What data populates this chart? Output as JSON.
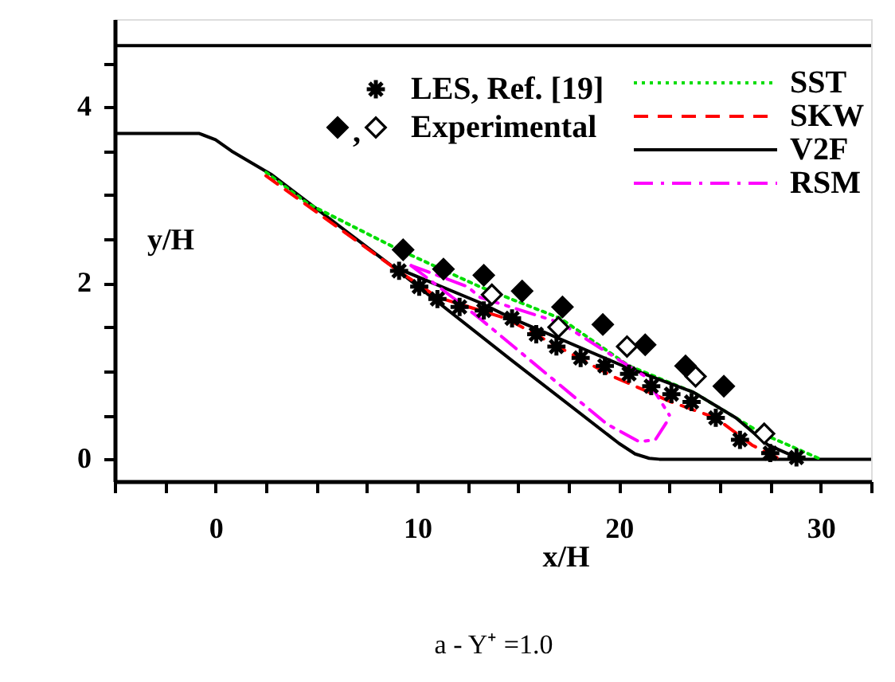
{
  "chart_data": {
    "type": "line",
    "xlabel": "x/H",
    "ylabel": "y/H",
    "xlim": [
      -5,
      32.5
    ],
    "ylim": [
      -0.25,
      5
    ],
    "xticks": [
      {
        "value": -5,
        "label": null
      },
      {
        "value": -2.5,
        "label": null
      },
      0,
      {
        "value": 2.5,
        "label": null
      },
      {
        "value": 5,
        "label": null
      },
      {
        "value": 7.5,
        "label": null
      },
      10,
      {
        "value": 12.5,
        "label": null
      },
      {
        "value": 15,
        "label": null
      },
      {
        "value": 17.5,
        "label": null
      },
      20,
      {
        "value": 22.5,
        "label": null
      },
      {
        "value": 25,
        "label": null
      },
      {
        "value": 27.5,
        "label": null
      },
      30,
      {
        "value": 32.5,
        "label": null
      }
    ],
    "yticks": [
      0,
      {
        "value": 0.5,
        "label": null
      },
      {
        "value": 1,
        "label": null
      },
      {
        "value": 1.5,
        "label": null
      },
      2,
      {
        "value": 2.5,
        "label": null
      },
      {
        "value": 3,
        "label": null
      },
      {
        "value": 3.5,
        "label": null
      },
      4,
      {
        "value": 4.5,
        "label": null
      }
    ],
    "grid": false,
    "legend": "top right",
    "annotations": [
      "a - Y⁺ =1.0",
      ","
    ],
    "series": [
      {
        "color": "#000000",
        "line_style": "solid",
        "x": [
          -5,
          32.5
        ],
        "values": [
          4.7,
          4.7
        ]
      },
      {
        "color": "#000000",
        "line_style": "solid",
        "x": [
          -5,
          -0.8,
          0,
          0.8,
          2.8,
          9,
          14.7,
          20,
          20.8,
          21.5,
          22,
          32.5
        ],
        "values": [
          3.7,
          3.7,
          3.63,
          3.5,
          3.23,
          2.15,
          1.12,
          0.18,
          0.06,
          0.01,
          0,
          0
        ]
      },
      {
        "type": "scatter",
        "name": "LES, Ref. [19]",
        "color": "#000000",
        "marker": "cross",
        "x": [
          9.1,
          10.1,
          11,
          12.1,
          13.3,
          14.7,
          15.9,
          16.9,
          18.1,
          19.3,
          20.5,
          21.6,
          22.6,
          23.6,
          24.8,
          26,
          27.5,
          28.8
        ],
        "values": [
          2.14,
          1.96,
          1.82,
          1.73,
          1.69,
          1.6,
          1.42,
          1.28,
          1.15,
          1.06,
          0.97,
          0.83,
          0.74,
          0.65,
          0.47,
          0.22,
          0.07,
          0.02
        ]
      },
      {
        "type": "scatter",
        "color": "#000000",
        "marker": "diamond",
        "x": [
          9.3,
          11.3,
          13.3,
          15.2,
          17.2,
          19.2,
          21.3,
          23.3,
          25.2
        ],
        "values": [
          2.38,
          2.16,
          2.09,
          1.91,
          1.73,
          1.53,
          1.3,
          1.06,
          0.83
        ]
      },
      {
        "type": "scatter",
        "name": "Experimental",
        "color": "#ffffff",
        "marker": "diamond",
        "x": [
          13.7,
          17,
          20.4,
          23.8,
          27.2
        ],
        "values": [
          1.87,
          1.5,
          1.28,
          0.94,
          0.29
        ]
      },
      {
        "name": "SST",
        "color": "#00dd00",
        "line_style": "dotted",
        "x": [
          2.5,
          4.6,
          9.1,
          13.1,
          17.1,
          20.5,
          23.7,
          27.1,
          30
        ],
        "values": [
          3.26,
          2.9,
          2.38,
          1.96,
          1.6,
          1.06,
          0.76,
          0.29,
          0
        ]
      },
      {
        "name": "SKW",
        "color": "#ff0000",
        "line_style": "dashed",
        "x": [
          2.5,
          9,
          11,
          14.4,
          19.7,
          22.6,
          24.8,
          26.6,
          28
        ],
        "values": [
          3.22,
          2.15,
          1.84,
          1.6,
          0.94,
          0.65,
          0.47,
          0.16,
          0
        ]
      },
      {
        "name": "V2F",
        "color": "#000000",
        "line_style": "solid",
        "x": [
          8.9,
          13.1,
          14.7,
          20.2,
          23.7,
          25.8,
          27.4,
          29
        ],
        "values": [
          2.18,
          1.78,
          1.6,
          1.06,
          0.76,
          0.47,
          0.16,
          0
        ]
      },
      {
        "name": "RSM",
        "color": "#ff00ff",
        "line_style": "dashdot",
        "x": [
          9.7,
          12.5,
          13.1,
          17.1,
          21.3,
          22.5
        ],
        "values": [
          2.2,
          1.96,
          1.84,
          1.55,
          0.94,
          0.5
        ]
      },
      {
        "color": "#ff00ff",
        "line_style": "dashdot",
        "x": [
          9.7,
          13.1,
          19.4,
          21,
          21.8,
          22.5
        ],
        "values": [
          2.2,
          1.6,
          0.4,
          0.2,
          0.22,
          0.47
        ]
      }
    ]
  }
}
